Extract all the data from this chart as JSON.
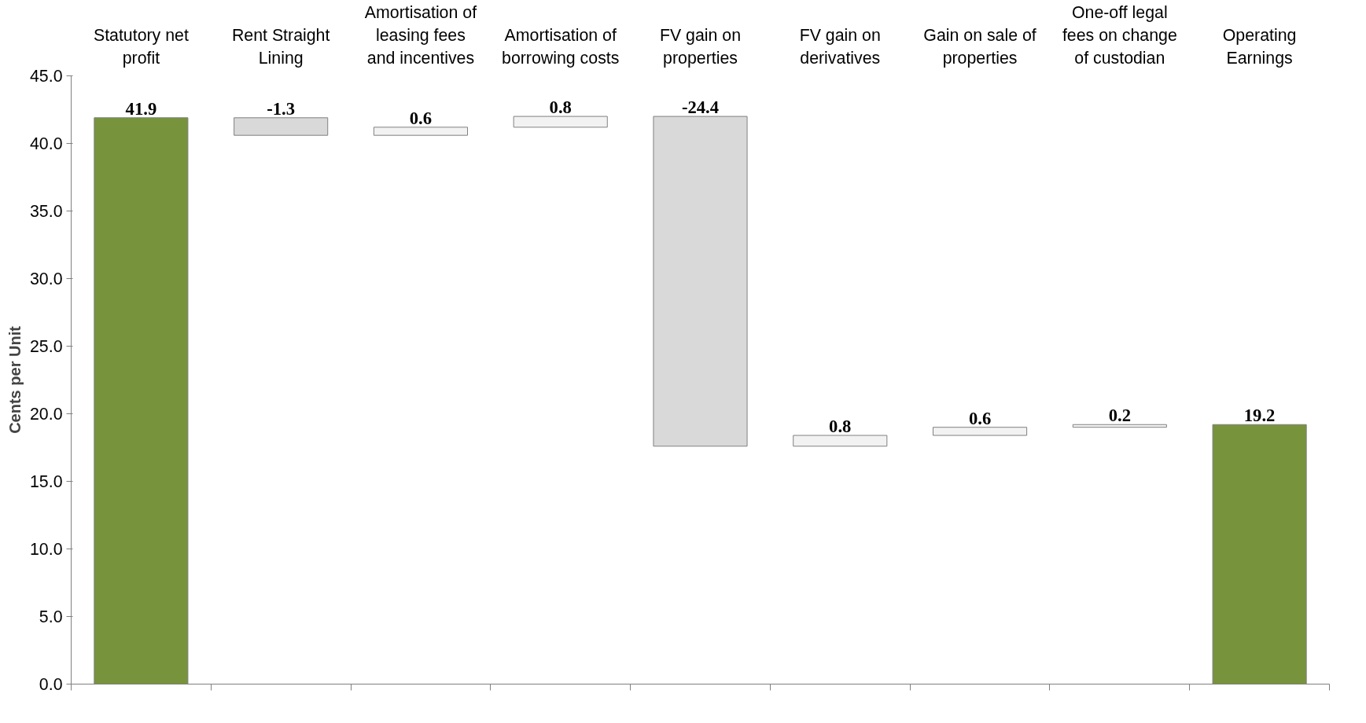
{
  "chart_data": {
    "type": "bar",
    "ylabel": "Cents per Unit",
    "categories": [
      "Statutory net profit",
      "Rent Straight Lining",
      "Amortisation of leasing fees and incentives",
      "Amortisation of borrowing costs",
      "FV gain on properties",
      "FV gain on derivatives",
      "Gain on sale of properties",
      "One-off legal fees on change of custodian",
      "Operating Earnings"
    ],
    "values": [
      41.9,
      -1.3,
      0.6,
      0.8,
      -24.4,
      0.8,
      0.6,
      0.2,
      19.2
    ],
    "base": [
      0,
      41.9,
      40.6,
      41.2,
      42.0,
      17.6,
      18.4,
      19.0,
      0
    ],
    "colors": [
      "#77933c",
      "#d9d9d9",
      "#f2f2f2",
      "#f2f2f2",
      "#d9d9d9",
      "#f2f2f2",
      "#f2f2f2",
      "#f2f2f2",
      "#77933c"
    ],
    "data_labels": true,
    "ylim": [
      0,
      45
    ],
    "yticks": [
      {
        "value": 0,
        "label": "0.0"
      },
      {
        "value": 5,
        "label": "5.0"
      },
      {
        "value": 10,
        "label": "10.0"
      },
      {
        "value": 15,
        "label": "15.0"
      },
      {
        "value": 20,
        "label": "20.0"
      },
      {
        "value": 25,
        "label": "25.0"
      },
      {
        "value": 30,
        "label": "30.0"
      },
      {
        "value": 35,
        "label": "35.0"
      },
      {
        "value": 40,
        "label": "40.0"
      },
      {
        "value": 45,
        "label": "45.0"
      }
    ],
    "grid": false
  }
}
